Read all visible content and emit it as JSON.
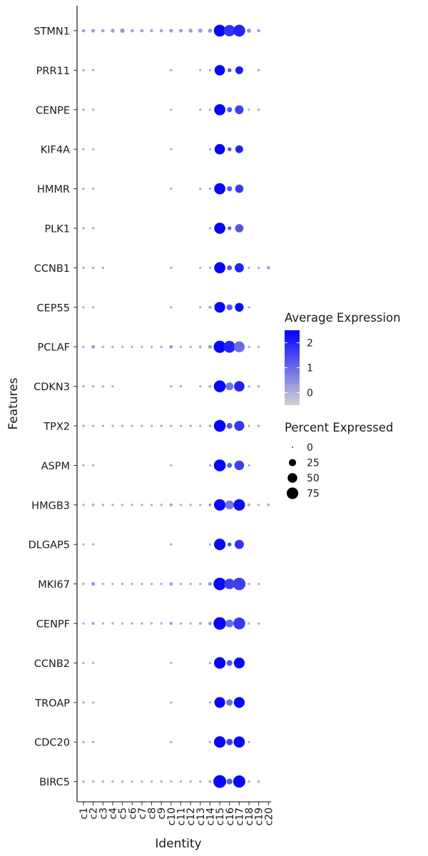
{
  "chart_data": {
    "type": "dotplot",
    "xlabel": "Identity",
    "ylabel": "Features",
    "categories": [
      "c1",
      "c2",
      "c3",
      "c4",
      "c5",
      "c6",
      "c7",
      "c8",
      "c9",
      "c10",
      "c11",
      "c12",
      "c13",
      "c14",
      "c15",
      "c16",
      "c17",
      "c18",
      "c19",
      "c20"
    ],
    "features": [
      {
        "name": "STMN1",
        "pct": [
          3,
          4,
          3,
          5,
          7,
          3,
          3,
          3,
          3,
          4,
          4,
          5,
          6,
          6,
          80,
          72,
          80,
          6,
          3,
          0
        ],
        "avg": [
          0.2,
          0.3,
          0.2,
          0.3,
          0.4,
          0.2,
          0.2,
          0.2,
          0.2,
          0.3,
          0.3,
          0.3,
          0.3,
          0.3,
          2.4,
          1.8,
          2.0,
          0.4,
          0.2,
          0
        ]
      },
      {
        "name": "PRR11",
        "pct": [
          1,
          1,
          0,
          0,
          0,
          0,
          0,
          0,
          0,
          1,
          0,
          0,
          1,
          1,
          60,
          5,
          30,
          0,
          1,
          0
        ],
        "avg": [
          0,
          0,
          0,
          0,
          0,
          0,
          0,
          0,
          0,
          0,
          0,
          0,
          0,
          0,
          2.4,
          1.2,
          2.1,
          0,
          0,
          0
        ]
      },
      {
        "name": "CENPE",
        "pct": [
          1,
          1,
          0,
          0,
          0,
          0,
          0,
          0,
          0,
          1,
          0,
          0,
          1,
          1,
          70,
          10,
          40,
          1,
          1,
          0
        ],
        "avg": [
          0,
          0,
          0,
          0,
          0,
          0,
          0,
          0,
          0,
          0,
          0,
          0,
          0,
          0,
          2.4,
          1.3,
          1.6,
          0,
          0,
          0
        ]
      },
      {
        "name": "KIF4A",
        "pct": [
          1,
          1,
          0,
          0,
          0,
          0,
          0,
          0,
          0,
          1,
          0,
          0,
          0,
          1,
          60,
          5,
          30,
          0,
          0,
          0
        ],
        "avg": [
          0,
          0,
          0,
          0,
          0,
          0,
          0,
          0,
          0,
          0,
          0,
          0,
          0,
          0,
          2.4,
          1.3,
          2.0,
          0,
          0,
          0
        ]
      },
      {
        "name": "HMMR",
        "pct": [
          1,
          1,
          0,
          0,
          0,
          0,
          0,
          0,
          0,
          1,
          0,
          0,
          1,
          1,
          70,
          10,
          35,
          0,
          0,
          0
        ],
        "avg": [
          0,
          0,
          0,
          0,
          0,
          0,
          0,
          0,
          0,
          0,
          0,
          0,
          0,
          0,
          2.4,
          1.3,
          1.7,
          0,
          0,
          0
        ]
      },
      {
        "name": "PLK1",
        "pct": [
          1,
          1,
          0,
          0,
          0,
          0,
          0,
          0,
          0,
          0,
          0,
          0,
          0,
          1,
          70,
          5,
          35,
          0,
          0,
          0
        ],
        "avg": [
          0,
          0,
          0,
          0,
          0,
          0,
          0,
          0,
          0,
          0,
          0,
          0,
          0,
          0,
          2.4,
          1.0,
          1.3,
          0,
          0,
          0
        ]
      },
      {
        "name": "CCNB1",
        "pct": [
          1,
          1,
          1,
          0,
          0,
          0,
          0,
          0,
          0,
          1,
          0,
          0,
          1,
          1,
          70,
          10,
          45,
          1,
          1,
          3
        ],
        "avg": [
          0,
          0,
          0,
          0,
          0,
          0,
          0,
          0,
          0,
          0,
          0,
          0,
          0,
          0,
          2.4,
          1.3,
          2.0,
          0,
          0,
          0.3
        ]
      },
      {
        "name": "CEP55",
        "pct": [
          1,
          1,
          0,
          0,
          0,
          0,
          0,
          0,
          0,
          1,
          0,
          0,
          1,
          3,
          65,
          15,
          40,
          1,
          0,
          0
        ],
        "avg": [
          0,
          0,
          0,
          0,
          0,
          0,
          0,
          0,
          0,
          0,
          0,
          0,
          0,
          0,
          2.4,
          1.3,
          2.3,
          0,
          0,
          0
        ]
      },
      {
        "name": "PCLAF",
        "pct": [
          1,
          4,
          1,
          1,
          1,
          1,
          1,
          1,
          1,
          3,
          1,
          1,
          2,
          4,
          85,
          80,
          65,
          1,
          1,
          0
        ],
        "avg": [
          0,
          0.3,
          0,
          0,
          0,
          0,
          0,
          0,
          0,
          0.4,
          0,
          0,
          0,
          0.4,
          2.4,
          2.0,
          1.0,
          0,
          0,
          0
        ]
      },
      {
        "name": "CDKN3",
        "pct": [
          1,
          1,
          1,
          1,
          0,
          0,
          0,
          0,
          0,
          1,
          1,
          0,
          1,
          2,
          80,
          30,
          60,
          1,
          1,
          0
        ],
        "avg": [
          0,
          0,
          0,
          0,
          0,
          0,
          0,
          0,
          0,
          0,
          0,
          0,
          0,
          0,
          2.4,
          0.9,
          2.0,
          0,
          0,
          0
        ]
      },
      {
        "name": "TPX2",
        "pct": [
          1,
          1,
          1,
          1,
          1,
          1,
          1,
          1,
          1,
          1,
          1,
          1,
          1,
          2,
          80,
          15,
          55,
          1,
          1,
          0
        ],
        "avg": [
          0,
          0,
          0,
          0,
          0,
          0,
          0,
          0,
          0,
          0,
          0,
          0,
          0,
          0,
          2.4,
          1.3,
          1.7,
          0,
          0,
          0
        ]
      },
      {
        "name": "ASPM",
        "pct": [
          1,
          1,
          0,
          0,
          0,
          0,
          0,
          0,
          0,
          1,
          0,
          0,
          0,
          1,
          80,
          10,
          50,
          1,
          0,
          0
        ],
        "avg": [
          0,
          0,
          0,
          0,
          0,
          0,
          0,
          0,
          0,
          0,
          0,
          0,
          0,
          0,
          2.4,
          1.2,
          1.6,
          0,
          0,
          0
        ]
      },
      {
        "name": "HMGB3",
        "pct": [
          1,
          2,
          1,
          1,
          1,
          1,
          1,
          1,
          1,
          2,
          1,
          1,
          1,
          2,
          75,
          40,
          75,
          2,
          1,
          2
        ],
        "avg": [
          0,
          0,
          0,
          0,
          0,
          0,
          0,
          0,
          0,
          0.3,
          0,
          0,
          0,
          0.3,
          2.4,
          0.9,
          2.3,
          0,
          0,
          0
        ]
      },
      {
        "name": "DLGAP5",
        "pct": [
          1,
          1,
          0,
          0,
          0,
          0,
          0,
          0,
          0,
          1,
          0,
          0,
          0,
          1,
          75,
          5,
          45,
          0,
          0,
          0
        ],
        "avg": [
          0,
          0,
          0,
          0,
          0,
          0,
          0,
          0,
          0,
          0,
          0,
          0,
          0,
          0,
          2.4,
          1.3,
          1.8,
          0,
          0,
          0
        ]
      },
      {
        "name": "MKI67",
        "pct": [
          1,
          4,
          1,
          1,
          1,
          1,
          1,
          1,
          1,
          3,
          1,
          1,
          1,
          4,
          90,
          60,
          90,
          1,
          1,
          0
        ],
        "avg": [
          0,
          0.4,
          0,
          0,
          0,
          0,
          0,
          0,
          0,
          0.4,
          0,
          0,
          0,
          0.4,
          2.4,
          1.6,
          1.6,
          0,
          0,
          0
        ]
      },
      {
        "name": "CENPF",
        "pct": [
          1,
          2,
          1,
          1,
          1,
          1,
          1,
          1,
          1,
          2,
          1,
          1,
          2,
          3,
          90,
          30,
          80,
          1,
          1,
          0
        ],
        "avg": [
          0,
          0.3,
          0,
          0,
          0,
          0,
          0,
          0,
          0,
          0.3,
          0,
          0,
          0,
          0.3,
          2.4,
          1.0,
          1.7,
          0,
          0,
          0
        ]
      },
      {
        "name": "CCNB2",
        "pct": [
          1,
          1,
          0,
          0,
          0,
          0,
          0,
          0,
          0,
          1,
          0,
          0,
          0,
          1,
          75,
          15,
          65,
          0,
          0,
          0
        ],
        "avg": [
          0,
          0,
          0,
          0,
          0,
          0,
          0,
          0,
          0,
          0,
          0,
          0,
          0,
          0,
          2.4,
          1.3,
          2.4,
          0,
          0,
          0
        ]
      },
      {
        "name": "TROAP",
        "pct": [
          1,
          1,
          0,
          0,
          0,
          0,
          0,
          0,
          0,
          1,
          0,
          0,
          0,
          1,
          65,
          20,
          65,
          0,
          0,
          0
        ],
        "avg": [
          0,
          0,
          0,
          0,
          0,
          0,
          0,
          0,
          0,
          0,
          0,
          0,
          0,
          0,
          2.4,
          0.9,
          2.4,
          0,
          0,
          0
        ]
      },
      {
        "name": "CDC20",
        "pct": [
          1,
          1,
          0,
          0,
          0,
          0,
          0,
          0,
          0,
          1,
          0,
          0,
          0,
          1,
          75,
          20,
          70,
          1,
          0,
          0
        ],
        "avg": [
          0,
          0,
          0,
          0,
          0,
          0,
          0,
          0,
          0,
          0,
          0,
          0,
          0,
          0,
          2.4,
          1.6,
          2.4,
          0,
          0,
          0
        ]
      },
      {
        "name": "BIRC5",
        "pct": [
          1,
          1,
          1,
          1,
          1,
          1,
          1,
          1,
          1,
          1,
          1,
          1,
          1,
          2,
          95,
          15,
          85,
          1,
          1,
          0
        ],
        "avg": [
          0,
          0,
          0,
          0,
          0,
          0,
          0,
          0,
          0,
          0,
          0,
          0,
          0,
          0,
          2.4,
          1.3,
          2.4,
          0,
          0,
          0
        ]
      }
    ],
    "color_legend": {
      "title": "Average Expression",
      "ticks": [
        2,
        1,
        0
      ],
      "range": [
        -0.5,
        2.5
      ],
      "low_color": "#d3d3d3",
      "high_color": "#0000ff"
    },
    "size_legend": {
      "title": "Percent Expressed",
      "ticks": [
        0,
        25,
        50,
        75
      ]
    }
  }
}
